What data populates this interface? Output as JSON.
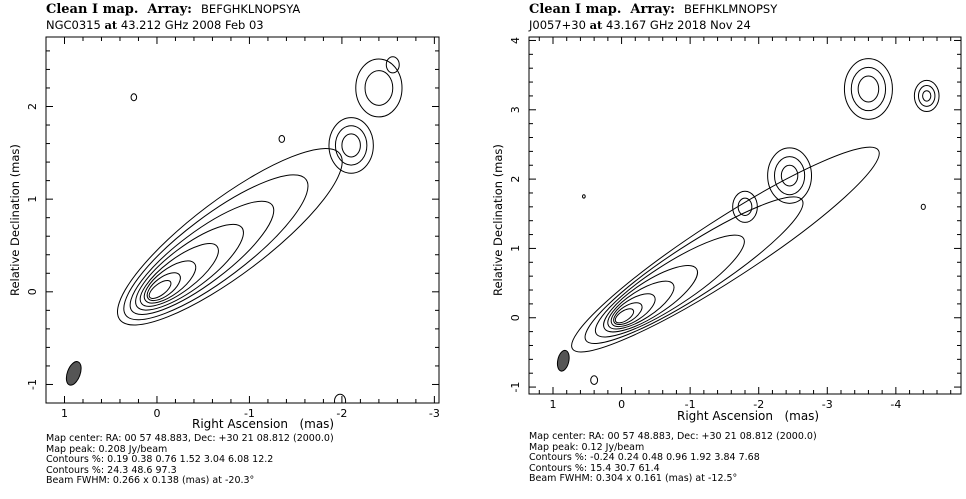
{
  "chart_data": [
    {
      "type": "contour",
      "title_prefix": "Clean I map.",
      "array_label": "Array:",
      "array": "BEFGHKLNOPSYA",
      "source": "NGC0315",
      "freq_text": "at",
      "freq": "43.212 GHz",
      "date": "2008 Feb 03",
      "xlabel": "Right Ascension",
      "xlabel_unit": "(mas)",
      "ylabel": "Relative Declination  (mas)",
      "xlim": [
        1.2,
        -3.05
      ],
      "ylim": [
        -1.2,
        2.75
      ],
      "xticks": [
        1,
        0,
        -1,
        -2,
        -3
      ],
      "yticks": [
        -1,
        0,
        1,
        2
      ],
      "map_center": "Map center:  RA: 00 57 48.883,   Dec: +30 21 08.812 (2000.0)",
      "map_peak": "Map peak: 0.208 Jy/beam",
      "contours1": "Contours %: 0.19 0.38 0.76 1.52 3.04 6.08 12.2",
      "contours2": "Contours %: 24.3 48.6 97.3",
      "beam": "Beam FWHM: 0.266 x 0.138 (mas) at -20.3°",
      "beam_major": 0.266,
      "beam_minor": 0.138,
      "beam_pa": -20.3,
      "beam_pos": [
        0.9,
        -0.88
      ],
      "jet": {
        "angle": 37,
        "widths": [
          0.11,
          0.18,
          0.25,
          0.32,
          0.41,
          0.5,
          0.62,
          0.74
        ],
        "lengths": [
          0.1,
          0.22,
          0.42,
          0.72,
          1.05,
          1.45,
          1.9,
          2.35
        ]
      },
      "blobs": [
        {
          "x": -2.1,
          "y": 1.58,
          "r": [
            0.1,
            0.17,
            0.24
          ]
        },
        {
          "x": -2.4,
          "y": 2.2,
          "r": [
            0.15,
            0.25
          ]
        },
        {
          "x": -2.55,
          "y": 2.45,
          "r": [
            0.07
          ]
        },
        {
          "x": 0.25,
          "y": 2.1,
          "r": [
            0.03
          ]
        },
        {
          "x": -1.35,
          "y": 1.65,
          "r": [
            0.03
          ]
        },
        {
          "x": -1.98,
          "y": -1.18,
          "r": [
            0.06
          ]
        }
      ]
    },
    {
      "type": "contour",
      "title_prefix": "Clean I map.",
      "array_label": "Array:",
      "array": "BEFHKLMNOPSY",
      "source": "J0057+30",
      "freq_text": "at",
      "freq": "43.167 GHz",
      "date": "2018 Nov 24",
      "xlabel": "Right Ascension",
      "xlabel_unit": "(mas)",
      "ylabel": "Relative Declination  (mas)",
      "xlim": [
        1.35,
        -4.95
      ],
      "ylim": [
        -1.1,
        4.05
      ],
      "xticks": [
        1,
        0,
        -1,
        -2,
        -3,
        -4
      ],
      "yticks": [
        -1,
        0,
        1,
        2,
        3,
        4
      ],
      "map_center": "Map center:  RA: 00 57 48.883,   Dec: +30 21 08.812 (2000.0)",
      "map_peak": "Map peak: 0.12 Jy/beam",
      "contours1": "Contours %: -0.24 0.24 0.48 0.96 1.92 3.84 7.68",
      "contours2": "Contours %: 15.4 30.7 61.4",
      "beam": "Beam FWHM: 0.304 x 0.161 (mas) at -12.5°",
      "beam_major": 0.304,
      "beam_minor": 0.161,
      "beam_pa": -12.5,
      "beam_pos": [
        0.85,
        -0.62
      ],
      "jet": {
        "angle": 33,
        "widths": [
          0.13,
          0.2,
          0.28,
          0.36,
          0.45,
          0.55,
          0.66,
          0.78
        ],
        "lengths": [
          0.12,
          0.26,
          0.48,
          0.8,
          1.2,
          2.0,
          3.0,
          4.3
        ]
      },
      "blobs": [
        {
          "x": -2.45,
          "y": 2.05,
          "r": [
            0.12,
            0.22,
            0.32
          ]
        },
        {
          "x": -3.6,
          "y": 3.3,
          "r": [
            0.15,
            0.25,
            0.35
          ]
        },
        {
          "x": -4.45,
          "y": 3.2,
          "r": [
            0.06,
            0.12,
            0.18
          ]
        },
        {
          "x": -1.8,
          "y": 1.6,
          "r": [
            0.1,
            0.18
          ]
        },
        {
          "x": 0.4,
          "y": -0.9,
          "r": [
            0.05
          ]
        },
        {
          "x": -4.4,
          "y": 1.6,
          "r": [
            0.03
          ]
        },
        {
          "x": 0.55,
          "y": 1.75,
          "r": [
            0.02
          ]
        }
      ]
    }
  ]
}
